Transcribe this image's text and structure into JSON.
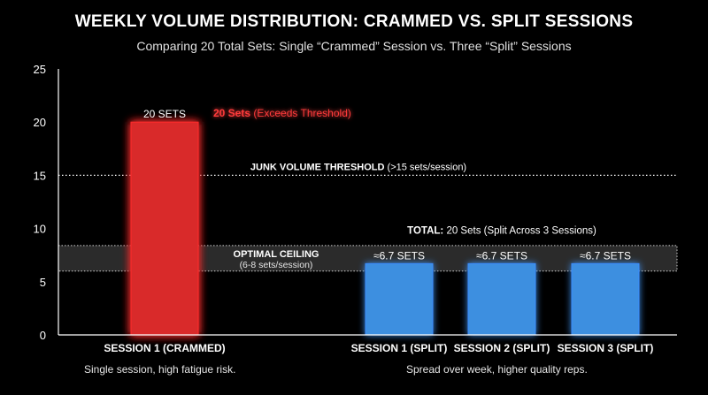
{
  "title": "WEEKLY VOLUME DISTRIBUTION: CRAMMED VS. SPLIT SESSIONS",
  "subtitle": "Comparing 20 Total Sets: Single “Crammed” Session vs. Three “Split” Sessions",
  "colors": {
    "crammed": "#d92a2a",
    "crammed_glow": "#ff2a2a",
    "split": "#3d8fe0",
    "split_glow": "#3a8cff",
    "threshold_label_red": "#ff3b3b"
  },
  "chart_data": {
    "type": "bar",
    "categories": [
      "SESSION 1 (CRAMMED)",
      "SESSION 1 (SPLIT)",
      "SESSION 2 (SPLIT)",
      "SESSION 3 (SPLIT)"
    ],
    "values": [
      20,
      6.7,
      6.7,
      6.7
    ],
    "bar_labels": [
      "20 SETS",
      "≈6.7 SETS",
      "≈6.7 SETS",
      "≈6.7 SETS"
    ],
    "bar_groups": [
      "crammed",
      "split",
      "split",
      "split"
    ],
    "xlabel": "",
    "ylabel": "",
    "ylim": [
      0,
      25
    ],
    "yticks": [
      0,
      5,
      10,
      15,
      20,
      25
    ],
    "grid": false,
    "reference_lines": [
      {
        "value": 15,
        "style": "dotted",
        "label_bold": "JUNK VOLUME THRESHOLD",
        "label_rest": " (>15 sets/session)"
      }
    ],
    "reference_bands": [
      {
        "from": 6,
        "to": 8.4,
        "label_line1": "OPTIMAL CEILING",
        "label_line2": "(6-8 sets/session)"
      }
    ],
    "annotations": {
      "exceeds_bold": "20 Sets",
      "exceeds_rest": " (Exceeds Threshold)",
      "total_bold": "TOTAL:",
      "total_rest": " 20 Sets (Split Across 3 Sessions)"
    }
  },
  "notes": {
    "left": "Single session, high fatigue risk.",
    "right": "Spread over week, higher quality reps."
  }
}
